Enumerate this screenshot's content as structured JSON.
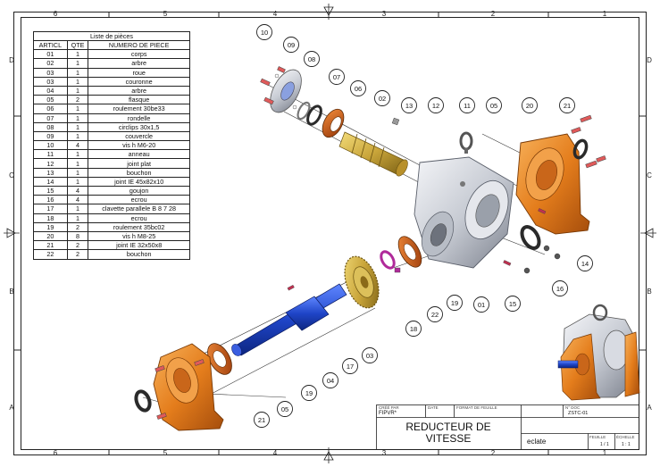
{
  "border": {
    "columns": [
      "6",
      "5",
      "4",
      "3",
      "2",
      "1"
    ],
    "rows": [
      "D",
      "C",
      "B",
      "A"
    ]
  },
  "bom": {
    "caption": "Liste de pièces",
    "headers": [
      "ARTICL",
      "QTE",
      "NUMERO DE PIECE"
    ],
    "rows": [
      [
        "01",
        "1",
        "corps"
      ],
      [
        "02",
        "1",
        "arbre"
      ],
      [
        "03",
        "1",
        "roue"
      ],
      [
        "03",
        "1",
        "couronne"
      ],
      [
        "04",
        "1",
        "arbre"
      ],
      [
        "05",
        "2",
        "flasque"
      ],
      [
        "06",
        "1",
        "roulement 30be33"
      ],
      [
        "07",
        "1",
        "rondelle"
      ],
      [
        "08",
        "1",
        "circlips 30x1,5"
      ],
      [
        "09",
        "1",
        "couvercle"
      ],
      [
        "10",
        "4",
        "vis h M6-20"
      ],
      [
        "11",
        "1",
        "anneau"
      ],
      [
        "12",
        "1",
        "joint plat"
      ],
      [
        "13",
        "1",
        "bouchon"
      ],
      [
        "14",
        "1",
        "joint IE 45x82x10"
      ],
      [
        "15",
        "4",
        "goujon"
      ],
      [
        "16",
        "4",
        "ecrou"
      ],
      [
        "17",
        "1",
        "clavette parallele B 8 7 28"
      ],
      [
        "18",
        "1",
        "ecrou"
      ],
      [
        "19",
        "2",
        "roulement 35bc02"
      ],
      [
        "20",
        "8",
        "vis h M8-25"
      ],
      [
        "21",
        "2",
        "joint IE 32x50x8"
      ],
      [
        "22",
        "2",
        "bouchon"
      ]
    ]
  },
  "balloons": [
    "10",
    "09",
    "08",
    "07",
    "06",
    "02",
    "13",
    "12",
    "11",
    "05",
    "20",
    "21",
    "14",
    "16",
    "15",
    "01",
    "19",
    "22",
    "18",
    "03",
    "17",
    "04",
    "19",
    "05",
    "21"
  ],
  "title_block": {
    "label_created": "CRÉÉ PAR",
    "author": "FIPVR*",
    "label_date": "DATE",
    "label_sheet_format": "FORMAT DE FEUILLE",
    "label_doc": "N° DOC",
    "doc_value": "ZSTC-01",
    "title": "REDUCTEUR DE VITESSE",
    "view": "eclate",
    "label_sheet": "FEUILLE",
    "sheet_value": "1 / 1",
    "label_scale": "ÉCHELLE",
    "scale_value": "1 : 1"
  },
  "colors": {
    "orange": "#e8801c",
    "blue": "#1f45c8",
    "gold": "#c9a53a",
    "silver": "#c8ccd4",
    "rubber": "#2a2a2a",
    "bearing": "#d05a1a",
    "magenta": "#b02a9a",
    "pin": "#c03050"
  }
}
